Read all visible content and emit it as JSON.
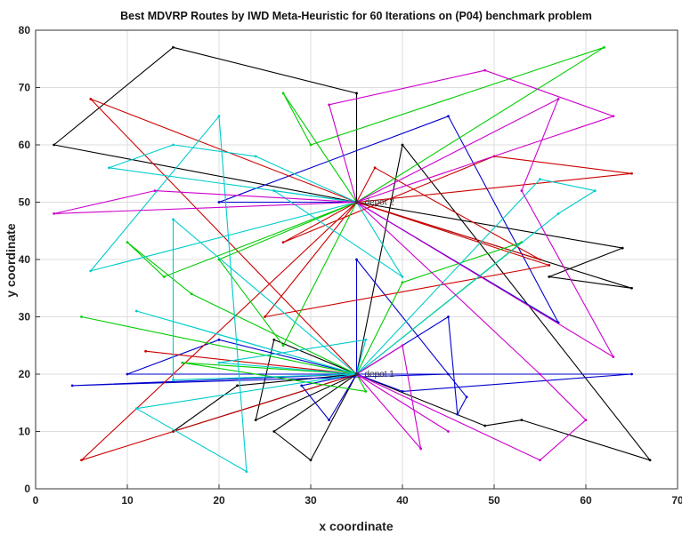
{
  "chart_data": {
    "type": "line",
    "title": "Best MDVRP Routes by IWD Meta-Heuristic for 60 Iterations on (P04) benchmark problem",
    "xlabel": "x coordinate",
    "ylabel": "y coordinate",
    "xlim": [
      0,
      70
    ],
    "ylim": [
      0,
      80
    ],
    "xticks": [
      0,
      10,
      20,
      30,
      40,
      50,
      60,
      70
    ],
    "yticks": [
      0,
      10,
      20,
      30,
      40,
      50,
      60,
      70,
      80
    ],
    "grid": true,
    "depots": [
      {
        "label": "depot 1",
        "x": 35,
        "y": 20
      },
      {
        "label": "depot 2",
        "x": 35,
        "y": 50
      }
    ],
    "routes": [
      {
        "color": "#000000",
        "points": [
          [
            35,
            50
          ],
          [
            2,
            60
          ],
          [
            15,
            77
          ],
          [
            35,
            69
          ],
          [
            35,
            50
          ]
        ]
      },
      {
        "color": "#000000",
        "points": [
          [
            35,
            50
          ],
          [
            64,
            42
          ],
          [
            56,
            37
          ],
          [
            65,
            35
          ],
          [
            35,
            50
          ]
        ]
      },
      {
        "color": "#000000",
        "points": [
          [
            35,
            20
          ],
          [
            15,
            10
          ],
          [
            22,
            18
          ],
          [
            35,
            20
          ]
        ]
      },
      {
        "color": "#000000",
        "points": [
          [
            35,
            20
          ],
          [
            24,
            12
          ],
          [
            26,
            26
          ],
          [
            35,
            20
          ]
        ]
      },
      {
        "color": "#000000",
        "points": [
          [
            35,
            20
          ],
          [
            30,
            5
          ],
          [
            26,
            10
          ],
          [
            35,
            20
          ]
        ]
      },
      {
        "color": "#000000",
        "points": [
          [
            35,
            20
          ],
          [
            40,
            60
          ],
          [
            67,
            5
          ],
          [
            53,
            12
          ],
          [
            49,
            11
          ],
          [
            35,
            20
          ]
        ]
      },
      {
        "color": "#0000cc",
        "points": [
          [
            35,
            50
          ],
          [
            20,
            50
          ],
          [
            45,
            65
          ],
          [
            57,
            29
          ],
          [
            35,
            50
          ]
        ]
      },
      {
        "color": "#0000cc",
        "points": [
          [
            35,
            20
          ],
          [
            4,
            18
          ],
          [
            45,
            20
          ],
          [
            35,
            20
          ]
        ]
      },
      {
        "color": "#0000cc",
        "points": [
          [
            35,
            20
          ],
          [
            10,
            20
          ],
          [
            20,
            26
          ],
          [
            35,
            20
          ]
        ]
      },
      {
        "color": "#0000cc",
        "points": [
          [
            35,
            20
          ],
          [
            40,
            17
          ],
          [
            65,
            20
          ],
          [
            35,
            20
          ]
        ]
      },
      {
        "color": "#0000cc",
        "points": [
          [
            35,
            20
          ],
          [
            45,
            30
          ],
          [
            46,
            13
          ],
          [
            47,
            16
          ],
          [
            35,
            40
          ],
          [
            35,
            20
          ]
        ]
      },
      {
        "color": "#0000cc",
        "points": [
          [
            35,
            20
          ],
          [
            32,
            12
          ],
          [
            29,
            18
          ],
          [
            35,
            20
          ]
        ]
      },
      {
        "color": "#cc0000",
        "points": [
          [
            35,
            50
          ],
          [
            6,
            68
          ],
          [
            35,
            20
          ]
        ]
      },
      {
        "color": "#cc0000",
        "points": [
          [
            35,
            20
          ],
          [
            5,
            5
          ],
          [
            35,
            50
          ]
        ]
      },
      {
        "color": "#cc0000",
        "points": [
          [
            35,
            50
          ],
          [
            56,
            39
          ],
          [
            25,
            30
          ],
          [
            35,
            50
          ]
        ]
      },
      {
        "color": "#cc0000",
        "points": [
          [
            35,
            50
          ],
          [
            65,
            55
          ],
          [
            50,
            58
          ],
          [
            27,
            43
          ],
          [
            35,
            50
          ]
        ]
      },
      {
        "color": "#cc0000",
        "points": [
          [
            35,
            20
          ],
          [
            12,
            24
          ],
          [
            35,
            20
          ]
        ]
      },
      {
        "color": "#cc0000",
        "points": [
          [
            35,
            50
          ],
          [
            55,
            40
          ],
          [
            37,
            56
          ],
          [
            35,
            50
          ]
        ]
      },
      {
        "color": "#00cc00",
        "points": [
          [
            35,
            50
          ],
          [
            62,
            77
          ],
          [
            30,
            60
          ],
          [
            27,
            69
          ],
          [
            35,
            50
          ]
        ]
      },
      {
        "color": "#00cc00",
        "points": [
          [
            35,
            50
          ],
          [
            14,
            37
          ],
          [
            10,
            43
          ],
          [
            17,
            34
          ],
          [
            35,
            20
          ]
        ]
      },
      {
        "color": "#00cc00",
        "points": [
          [
            35,
            20
          ],
          [
            5,
            30
          ],
          [
            35,
            20
          ]
        ]
      },
      {
        "color": "#00cc00",
        "points": [
          [
            35,
            20
          ],
          [
            16,
            22
          ],
          [
            36,
            17
          ],
          [
            35,
            20
          ]
        ]
      },
      {
        "color": "#00cc00",
        "points": [
          [
            35,
            20
          ],
          [
            53,
            43
          ],
          [
            40,
            36
          ],
          [
            35,
            20
          ]
        ]
      },
      {
        "color": "#00cc00",
        "points": [
          [
            35,
            50
          ],
          [
            20,
            40
          ],
          [
            27,
            25
          ],
          [
            35,
            50
          ]
        ]
      },
      {
        "color": "#00cccc",
        "points": [
          [
            35,
            50
          ],
          [
            8,
            56
          ],
          [
            15,
            60
          ],
          [
            24,
            58
          ],
          [
            35,
            50
          ]
        ]
      },
      {
        "color": "#00cccc",
        "points": [
          [
            35,
            50
          ],
          [
            6,
            38
          ],
          [
            20,
            65
          ],
          [
            23,
            3
          ],
          [
            11,
            14
          ],
          [
            35,
            20
          ]
        ]
      },
      {
        "color": "#00cccc",
        "points": [
          [
            35,
            20
          ],
          [
            11,
            31
          ],
          [
            22,
            26
          ],
          [
            35,
            20
          ]
        ]
      },
      {
        "color": "#00cccc",
        "points": [
          [
            35,
            20
          ],
          [
            15,
            47
          ],
          [
            15,
            19
          ],
          [
            35,
            20
          ]
        ]
      },
      {
        "color": "#00cccc",
        "points": [
          [
            35,
            20
          ],
          [
            55,
            54
          ],
          [
            61,
            52
          ],
          [
            57,
            48
          ],
          [
            35,
            20
          ]
        ]
      },
      {
        "color": "#00cccc",
        "points": [
          [
            35,
            20
          ],
          [
            36,
            26
          ],
          [
            20,
            22
          ],
          [
            35,
            20
          ]
        ]
      },
      {
        "color": "#00cccc",
        "points": [
          [
            35,
            50
          ],
          [
            40,
            37
          ],
          [
            26,
            52
          ],
          [
            35,
            50
          ]
        ]
      },
      {
        "color": "#cc00cc",
        "points": [
          [
            35,
            50
          ],
          [
            2,
            48
          ],
          [
            13,
            52
          ],
          [
            35,
            50
          ]
        ]
      },
      {
        "color": "#cc00cc",
        "points": [
          [
            35,
            50
          ],
          [
            32,
            67
          ],
          [
            49,
            73
          ],
          [
            63,
            65
          ],
          [
            35,
            50
          ]
        ]
      },
      {
        "color": "#cc00cc",
        "points": [
          [
            35,
            50
          ],
          [
            57,
            68
          ],
          [
            53,
            52
          ],
          [
            63,
            23
          ],
          [
            35,
            50
          ]
        ]
      },
      {
        "color": "#cc00cc",
        "points": [
          [
            35,
            50
          ],
          [
            55,
            20
          ],
          [
            60,
            12
          ],
          [
            55,
            5
          ],
          [
            35,
            20
          ]
        ]
      },
      {
        "color": "#cc00cc",
        "points": [
          [
            35,
            20
          ],
          [
            45,
            10
          ],
          [
            35,
            20
          ]
        ]
      },
      {
        "color": "#cc00cc",
        "points": [
          [
            35,
            20
          ],
          [
            42,
            7
          ],
          [
            40,
            25
          ],
          [
            35,
            20
          ]
        ]
      }
    ]
  }
}
